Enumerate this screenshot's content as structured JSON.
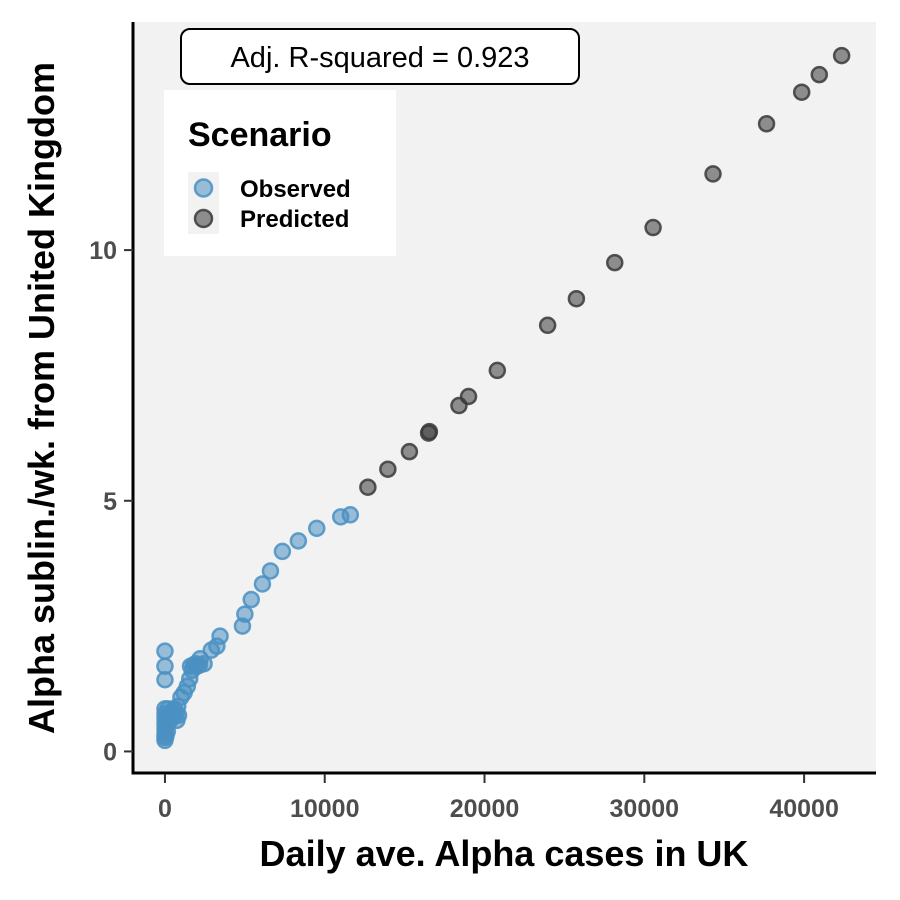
{
  "chart_data": {
    "type": "scatter",
    "xlabel": "Daily ave. Alpha cases in UK",
    "ylabel": "Alpha sublin./wk. from United Kingdom",
    "xlim": [
      -2000,
      44500
    ],
    "ylim": [
      -0.45,
      14.55
    ],
    "x_ticks": [
      0,
      10000,
      20000,
      30000,
      40000
    ],
    "x_tick_labels": [
      "0",
      "10000",
      "20000",
      "30000",
      "40000"
    ],
    "y_ticks": [
      0,
      5,
      10
    ],
    "y_tick_labels": [
      "0",
      "5",
      "10"
    ],
    "grid": false,
    "background": "#f2f2f2",
    "annotation": "Adj. R-squared = 0.923",
    "legend": {
      "title": "Scenario",
      "placement": "top-left",
      "entries": [
        "Observed",
        "Predicted"
      ]
    },
    "colors": {
      "Observed": "#4a90c2",
      "Predicted": "#3a3a3a"
    },
    "series": [
      {
        "name": "Observed",
        "points": [
          [
            0,
            2.0
          ],
          [
            0,
            1.7
          ],
          [
            0,
            1.43
          ],
          [
            0,
            0.85
          ],
          [
            0,
            0.75
          ],
          [
            0,
            0.65
          ],
          [
            0,
            0.55
          ],
          [
            0,
            0.45
          ],
          [
            0,
            0.35
          ],
          [
            0,
            0.28
          ],
          [
            0,
            0.22
          ],
          [
            60,
            0.3
          ],
          [
            80,
            0.5
          ],
          [
            120,
            0.7
          ],
          [
            150,
            0.4
          ],
          [
            200,
            0.85
          ],
          [
            250,
            0.6
          ],
          [
            300,
            0.75
          ],
          [
            400,
            0.65
          ],
          [
            450,
            0.8
          ],
          [
            500,
            0.7
          ],
          [
            600,
            0.85
          ],
          [
            700,
            0.75
          ],
          [
            750,
            0.62
          ],
          [
            800,
            0.9
          ],
          [
            850,
            0.72
          ],
          [
            1000,
            1.08
          ],
          [
            1200,
            1.17
          ],
          [
            1400,
            1.3
          ],
          [
            1550,
            1.45
          ],
          [
            1600,
            1.7
          ],
          [
            1700,
            1.62
          ],
          [
            1800,
            1.72
          ],
          [
            1900,
            1.75
          ],
          [
            2000,
            1.7
          ],
          [
            2150,
            1.72
          ],
          [
            2200,
            1.85
          ],
          [
            2450,
            1.75
          ],
          [
            2900,
            2.02
          ],
          [
            3250,
            2.1
          ],
          [
            3450,
            2.3
          ],
          [
            4850,
            2.5
          ],
          [
            5000,
            2.74
          ],
          [
            5400,
            3.03
          ],
          [
            6100,
            3.34
          ],
          [
            6600,
            3.6
          ],
          [
            7350,
            3.99
          ],
          [
            8350,
            4.2
          ],
          [
            9500,
            4.45
          ],
          [
            11000,
            4.68
          ],
          [
            11600,
            4.72
          ]
        ]
      },
      {
        "name": "Predicted",
        "points": [
          [
            12700,
            5.27
          ],
          [
            13950,
            5.63
          ],
          [
            15300,
            5.98
          ],
          [
            16500,
            6.35
          ],
          [
            16550,
            6.38
          ],
          [
            18400,
            6.9
          ],
          [
            19000,
            7.08
          ],
          [
            20800,
            7.6
          ],
          [
            23950,
            8.5
          ],
          [
            25750,
            9.03
          ],
          [
            28150,
            9.75
          ],
          [
            30550,
            10.45
          ],
          [
            34300,
            11.52
          ],
          [
            37650,
            12.52
          ],
          [
            39850,
            13.15
          ],
          [
            40950,
            13.5
          ],
          [
            42350,
            13.88
          ]
        ]
      }
    ]
  }
}
